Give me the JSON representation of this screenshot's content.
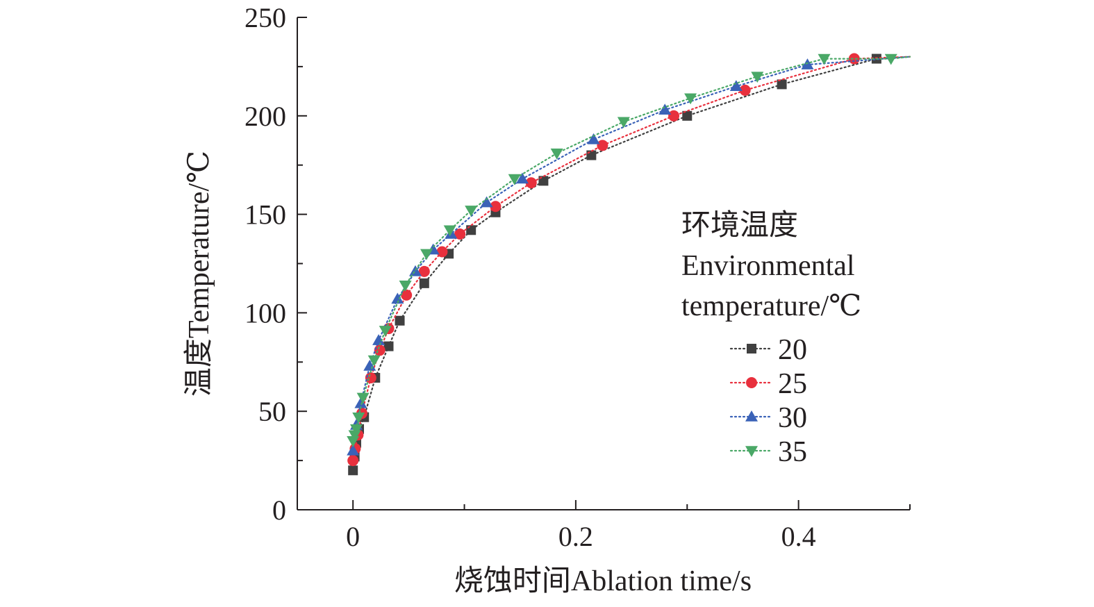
{
  "chart_data": {
    "type": "line",
    "xlabel": "烧蚀时间Ablation time/s",
    "ylabel": "温度Temperature/℃",
    "xlim": [
      -0.05,
      0.5
    ],
    "ylim": [
      0,
      250
    ],
    "xticks": [
      0,
      0.2,
      0.4
    ],
    "xtick_labels": [
      "0",
      "0.2",
      "0.4"
    ],
    "yticks": [
      0,
      50,
      100,
      150,
      200,
      250
    ],
    "ytick_labels": [
      "0",
      "50",
      "100",
      "150",
      "200",
      "250"
    ],
    "grid": false,
    "line_style": "dotted",
    "legend": {
      "placement": "right",
      "title_lines": [
        "环境温度",
        "Environmental",
        "temperature/℃"
      ]
    },
    "series": [
      {
        "name": "20",
        "color": "#404040",
        "marker": "square",
        "x": [
          0.0,
          0.0015,
          0.003,
          0.0055,
          0.01,
          0.02,
          0.032,
          0.042,
          0.064,
          0.086,
          0.106,
          0.128,
          0.171,
          0.214,
          0.3,
          0.385,
          0.47
        ],
        "y": [
          20,
          27,
          34,
          41,
          47,
          67,
          83,
          96,
          115,
          130,
          142,
          151,
          167,
          180,
          200,
          216,
          229
        ]
      },
      {
        "name": "25",
        "color": "#e8303d",
        "marker": "circle",
        "x": [
          0.0,
          0.002,
          0.0045,
          0.008,
          0.016,
          0.024,
          0.032,
          0.048,
          0.064,
          0.08,
          0.096,
          0.128,
          0.16,
          0.224,
          0.288,
          0.352,
          0.45
        ],
        "y": [
          25,
          31,
          38,
          49,
          67,
          81,
          92,
          109,
          121,
          131,
          140,
          154,
          166,
          185,
          200,
          213,
          229
        ]
      },
      {
        "name": "30",
        "color": "#3a62b7",
        "marker": "triangle-up",
        "x": [
          0.0,
          0.003,
          0.007,
          0.015,
          0.023,
          0.04,
          0.056,
          0.072,
          0.088,
          0.12,
          0.152,
          0.216,
          0.28,
          0.344,
          0.408
        ],
        "y": [
          30,
          43,
          54,
          73,
          86,
          107,
          121,
          132,
          140,
          156,
          168,
          188,
          203,
          215,
          226
        ]
      },
      {
        "name": "35",
        "color": "#4aa867",
        "marker": "triangle-down",
        "x": [
          0.0,
          0.0015,
          0.003,
          0.005,
          0.009,
          0.019,
          0.029,
          0.047,
          0.066,
          0.087,
          0.106,
          0.145,
          0.183,
          0.243,
          0.303,
          0.363,
          0.423,
          0.483
        ],
        "y": [
          35,
          38,
          41,
          47,
          57,
          76,
          91,
          114,
          130,
          142,
          152,
          168,
          181,
          197,
          209,
          220,
          229,
          229
        ]
      }
    ]
  }
}
